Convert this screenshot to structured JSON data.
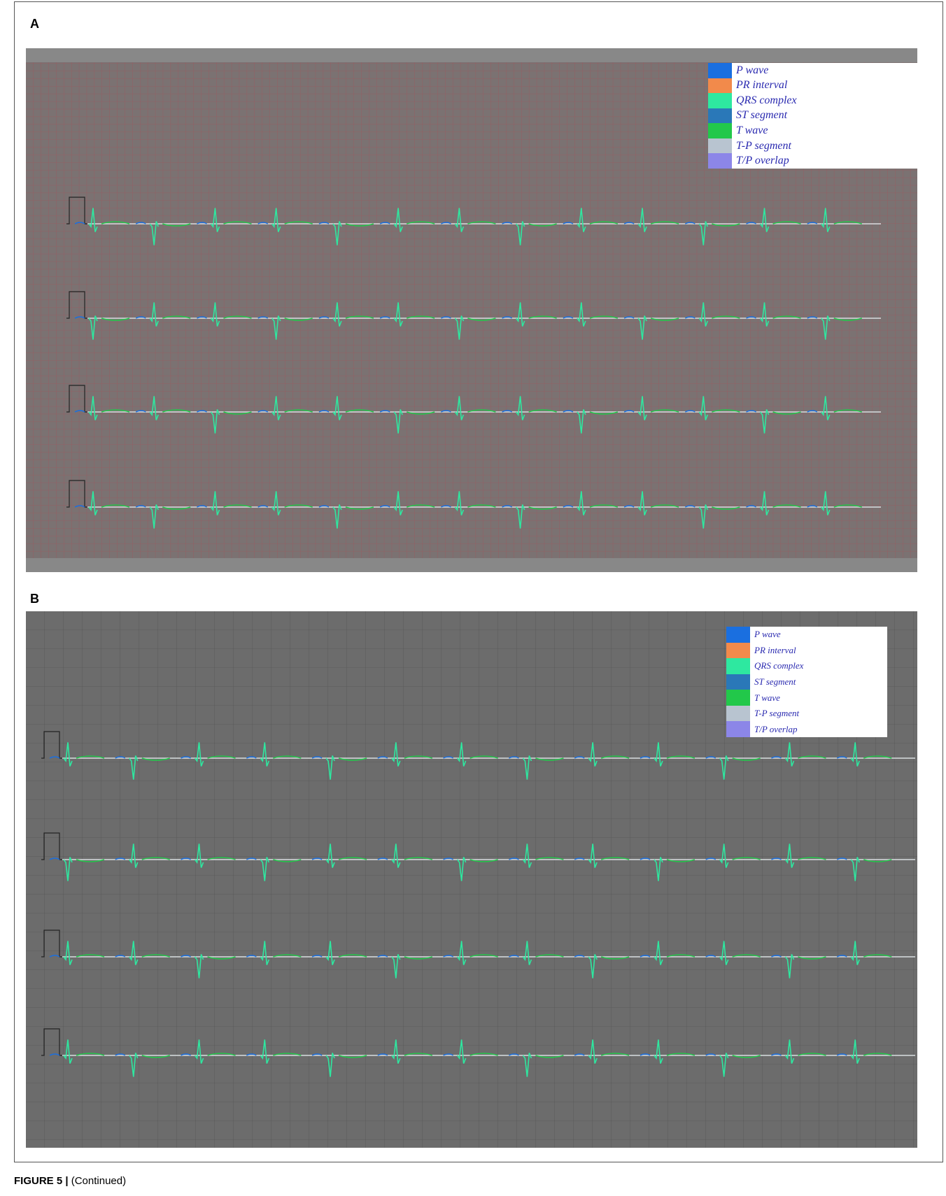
{
  "figure": {
    "panels": [
      {
        "label": "A",
        "legend": [
          {
            "label": "P wave",
            "color": "#1a6fe0"
          },
          {
            "label": "PR interval",
            "color": "#f28a4b"
          },
          {
            "label": "QRS complex",
            "color": "#2ee8a0"
          },
          {
            "label": "ST segment",
            "color": "#2a78b8"
          },
          {
            "label": "T wave",
            "color": "#22c84a"
          },
          {
            "label": "T-P segment",
            "color": "#b8c4d0"
          },
          {
            "label": "T/P overlap",
            "color": "#8c86e8"
          }
        ]
      },
      {
        "label": "B",
        "legend": [
          {
            "label": "P wave",
            "color": "#1a6fe0"
          },
          {
            "label": "PR interval",
            "color": "#f28a4b"
          },
          {
            "label": "QRS complex",
            "color": "#2ee8a0"
          },
          {
            "label": "ST segment",
            "color": "#2a78b8"
          },
          {
            "label": "T wave",
            "color": "#22c84a"
          },
          {
            "label": "T-P segment",
            "color": "#b8c4d0"
          },
          {
            "label": "T/P overlap",
            "color": "#8c86e8"
          }
        ]
      }
    ],
    "caption": {
      "label": "FIGURE 5 |",
      "text": "(Continued)"
    }
  }
}
